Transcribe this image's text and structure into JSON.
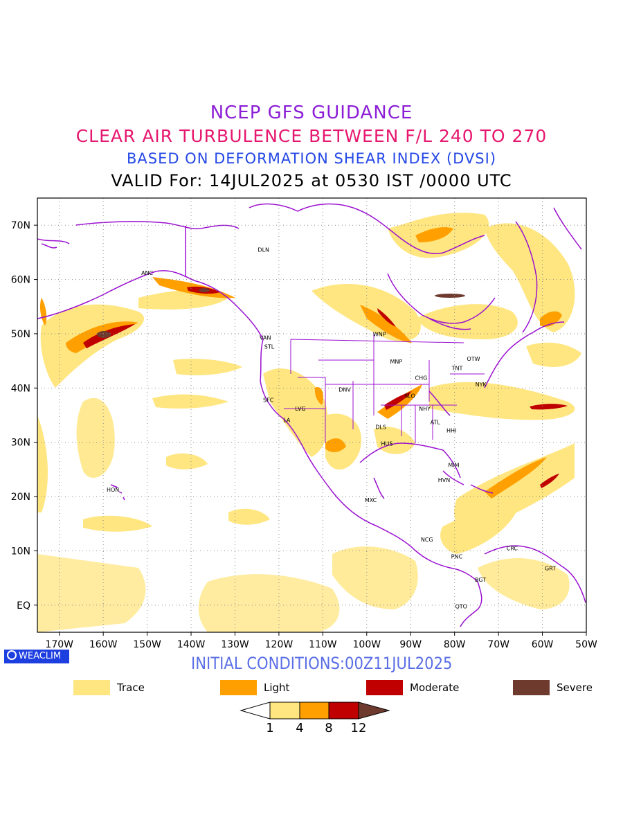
{
  "titles": {
    "line1": "NCEP GFS GUIDANCE",
    "line2": "CLEAR AIR TURBULENCE BETWEEN F/L 240 TO 270",
    "line3": "BASED ON DEFORMATION SHEAR INDEX (DVSI)",
    "line4": "VALID For: 14JUL2025 at 0530 IST /0000 UTC"
  },
  "badge": "WEACLIM",
  "initial_conditions": "INITIAL CONDITIONS:00Z11JUL2025",
  "map": {
    "lon_range": [
      -175,
      -50
    ],
    "lat_range": [
      -5,
      75
    ],
    "lon_ticks": [
      {
        "lon": -170,
        "label": "170W"
      },
      {
        "lon": -160,
        "label": "160W"
      },
      {
        "lon": -150,
        "label": "150W"
      },
      {
        "lon": -140,
        "label": "140W"
      },
      {
        "lon": -130,
        "label": "130W"
      },
      {
        "lon": -120,
        "label": "120W"
      },
      {
        "lon": -110,
        "label": "110W"
      },
      {
        "lon": -100,
        "label": "100W"
      },
      {
        "lon": -90,
        "label": "90W"
      },
      {
        "lon": -80,
        "label": "80W"
      },
      {
        "lon": -70,
        "label": "70W"
      },
      {
        "lon": -60,
        "label": "60W"
      },
      {
        "lon": -50,
        "label": "50W"
      }
    ],
    "lat_ticks": [
      {
        "lat": 0,
        "label": "EQ"
      },
      {
        "lat": 10,
        "label": "10N"
      },
      {
        "lat": 20,
        "label": "20N"
      },
      {
        "lat": 30,
        "label": "30N"
      },
      {
        "lat": 40,
        "label": "40N"
      },
      {
        "lat": 50,
        "label": "50N"
      },
      {
        "lat": 60,
        "label": "60N"
      },
      {
        "lat": 70,
        "label": "70N"
      }
    ],
    "stations": [
      {
        "code": "ANC",
        "lon": -150,
        "lat": 61.2
      },
      {
        "code": "DLN",
        "lon": -123.5,
        "lat": 65.5
      },
      {
        "code": "HON",
        "lon": -157.8,
        "lat": 21.3
      },
      {
        "code": "VAN",
        "lon": -123.1,
        "lat": 49.3
      },
      {
        "code": "STL",
        "lon": -122.2,
        "lat": 47.6
      },
      {
        "code": "WNP",
        "lon": -97.1,
        "lat": 49.9
      },
      {
        "code": "MNP",
        "lon": -93.3,
        "lat": 44.9
      },
      {
        "code": "TNT",
        "lon": -79.4,
        "lat": 43.7
      },
      {
        "code": "OTW",
        "lon": -75.7,
        "lat": 45.4
      },
      {
        "code": "CHG",
        "lon": -87.6,
        "lat": 41.9
      },
      {
        "code": "NYK",
        "lon": -74.0,
        "lat": 40.7
      },
      {
        "code": "SFC",
        "lon": -122.4,
        "lat": 37.8
      },
      {
        "code": "DNV",
        "lon": -105,
        "lat": 39.7
      },
      {
        "code": "SLO",
        "lon": -90.2,
        "lat": 38.6
      },
      {
        "code": "LVG",
        "lon": -115.1,
        "lat": 36.2
      },
      {
        "code": "LA",
        "lon": -118.2,
        "lat": 34.1
      },
      {
        "code": "NHY",
        "lon": -86.8,
        "lat": 36.2
      },
      {
        "code": "ATL",
        "lon": -84.4,
        "lat": 33.7
      },
      {
        "code": "DLS",
        "lon": -96.8,
        "lat": 32.8
      },
      {
        "code": "HHI",
        "lon": -80.7,
        "lat": 32.2
      },
      {
        "code": "HUS",
        "lon": -95.4,
        "lat": 29.8
      },
      {
        "code": "MIM",
        "lon": -80.2,
        "lat": 25.8
      },
      {
        "code": "HVN",
        "lon": -82.4,
        "lat": 23.1
      },
      {
        "code": "MXC",
        "lon": -99.1,
        "lat": 19.4
      },
      {
        "code": "NCG",
        "lon": -86.3,
        "lat": 12.1
      },
      {
        "code": "PNC",
        "lon": -79.5,
        "lat": 9.0
      },
      {
        "code": "CRC",
        "lon": -66.9,
        "lat": 10.5
      },
      {
        "code": "GRT",
        "lon": -58.2,
        "lat": 6.8
      },
      {
        "code": "BGT",
        "lon": -74.1,
        "lat": 4.7
      },
      {
        "code": "QTO",
        "lon": -78.5,
        "lat": -0.2
      }
    ]
  },
  "legend": {
    "items": [
      {
        "label": "Trace",
        "color": "#ffe680"
      },
      {
        "label": "Light",
        "color": "#ffa000"
      },
      {
        "label": "Moderate",
        "color": "#c00000"
      },
      {
        "label": "Severe",
        "color": "#6e3a2e"
      }
    ],
    "colorbar_values": [
      "1",
      "4",
      "8",
      "12"
    ]
  },
  "colors": {
    "trace": "#ffe680",
    "light": "#ffa000",
    "moderate": "#c00000",
    "severe": "#6e3a2e",
    "coastline": "#9b10d0"
  }
}
